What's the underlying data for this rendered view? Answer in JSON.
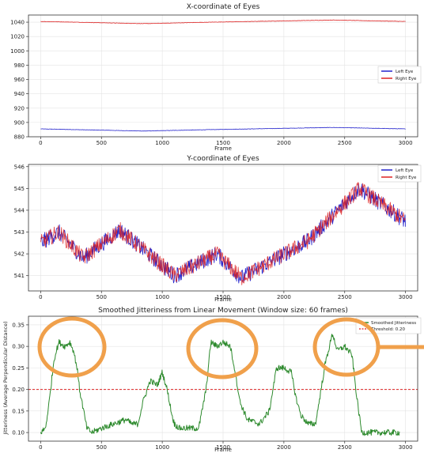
{
  "chart_data": [
    {
      "type": "line",
      "title": "X-coordinate of Eyes",
      "xlabel": "Frame",
      "ylabel": "",
      "xlim": [
        -100,
        3100
      ],
      "ylim": [
        880,
        1050
      ],
      "xticks": [
        0,
        500,
        1000,
        1500,
        2000,
        2500,
        3000
      ],
      "yticks": [
        880,
        900,
        920,
        940,
        960,
        980,
        1000,
        1020,
        1040
      ],
      "grid": true,
      "legend": "center-right",
      "series": [
        {
          "name": "Left Eye",
          "color": "#2222cc",
          "x": [
            0,
            850,
            1400,
            2400,
            3000
          ],
          "y": [
            891,
            888,
            890,
            893,
            891
          ]
        },
        {
          "name": "Right Eye",
          "color": "#dd2222",
          "x": [
            0,
            850,
            1400,
            2400,
            3000
          ],
          "y": [
            1041,
            1038,
            1040,
            1043,
            1041
          ]
        }
      ]
    },
    {
      "type": "line",
      "title": "Y-coordinate of Eyes",
      "xlabel": "Frame",
      "ylabel": "",
      "xlim": [
        -100,
        3100
      ],
      "ylim": [
        540.3,
        546.1
      ],
      "xticks": [
        0,
        500,
        1000,
        1500,
        2000,
        2500,
        3000
      ],
      "yticks": [
        541,
        542,
        543,
        544,
        545,
        546
      ],
      "grid": true,
      "legend": "top-right",
      "series": [
        {
          "name": "Left Eye",
          "color": "#2222cc",
          "x": [
            0,
            150,
            350,
            650,
            1100,
            1450,
            1650,
            2200,
            2620,
            3000
          ],
          "y": [
            542.5,
            543.0,
            541.8,
            543.1,
            541.0,
            542.0,
            540.9,
            542.6,
            545.0,
            543.5
          ]
        },
        {
          "name": "Right Eye",
          "color": "#dd2222",
          "x": [
            0,
            150,
            350,
            650,
            1100,
            1450,
            1650,
            2200,
            2620,
            3000
          ],
          "y": [
            542.5,
            543.0,
            541.8,
            543.1,
            541.0,
            542.0,
            540.9,
            542.6,
            545.0,
            543.5
          ]
        }
      ]
    },
    {
      "type": "line",
      "title": "Smoothed Jitteriness from Linear Movement (Window size: 60 frames)",
      "xlabel": "Frame",
      "ylabel": "Jitteriness (Average Perpendicular Distance)",
      "xlim": [
        -100,
        3100
      ],
      "ylim": [
        0.08,
        0.37
      ],
      "xticks": [
        0,
        500,
        1000,
        1500,
        2000,
        2500,
        3000
      ],
      "yticks": [
        0.1,
        0.15,
        0.2,
        0.25,
        0.3,
        0.35
      ],
      "grid": true,
      "legend": "top-right",
      "threshold": {
        "name": "Threshold: 0.20",
        "value": 0.2,
        "color": "#dd2222"
      },
      "series": [
        {
          "name": "Smoothed Jitteriness",
          "color": "#2d8a2d",
          "x": [
            0,
            40,
            70,
            110,
            150,
            200,
            240,
            270,
            300,
            320,
            360,
            380,
            420,
            500,
            600,
            700,
            750,
            800,
            840,
            900,
            960,
            1000,
            1040,
            1080,
            1100,
            1140,
            1200,
            1300,
            1360,
            1400,
            1450,
            1500,
            1560,
            1600,
            1640,
            1700,
            1800,
            1880,
            1940,
            2000,
            2060,
            2100,
            2140,
            2200,
            2260,
            2300,
            2340,
            2400,
            2440,
            2500,
            2560,
            2600,
            2640,
            2700,
            2800,
            2900,
            2950
          ],
          "y": [
            0.1,
            0.11,
            0.17,
            0.27,
            0.31,
            0.3,
            0.31,
            0.29,
            0.25,
            0.2,
            0.14,
            0.11,
            0.1,
            0.11,
            0.12,
            0.13,
            0.12,
            0.12,
            0.17,
            0.22,
            0.21,
            0.24,
            0.2,
            0.14,
            0.12,
            0.11,
            0.11,
            0.11,
            0.2,
            0.31,
            0.3,
            0.31,
            0.3,
            0.24,
            0.17,
            0.13,
            0.12,
            0.15,
            0.25,
            0.25,
            0.24,
            0.18,
            0.14,
            0.12,
            0.12,
            0.19,
            0.26,
            0.33,
            0.29,
            0.3,
            0.28,
            0.18,
            0.1,
            0.1,
            0.1,
            0.1,
            0.1
          ]
        }
      ]
    }
  ]
}
